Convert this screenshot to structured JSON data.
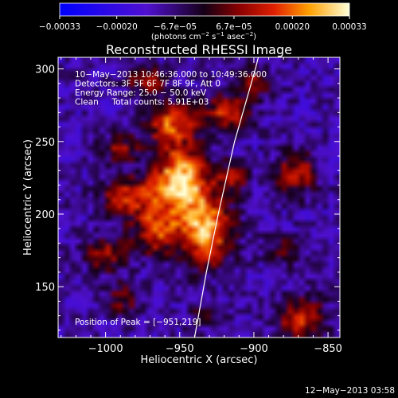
{
  "chart_data": {
    "type": "heatmap",
    "title": "Reconstructed RHESSI Image",
    "xlabel": "Heliocentric X (arcsec)",
    "ylabel": "Heliocentric Y (arcsec)",
    "xlim": [
      -1032,
      -842
    ],
    "ylim": [
      115,
      308
    ],
    "x_ticks": [
      -1000,
      -950,
      -900,
      -850
    ],
    "x_tick_labels": [
      "−1000",
      "−950",
      "−900",
      "−850"
    ],
    "y_ticks": [
      150,
      200,
      250,
      300
    ],
    "y_tick_labels": [
      "150",
      "200",
      "250",
      "300"
    ],
    "colorbar": {
      "min": -0.00033,
      "max": 0.00033,
      "ticks": [
        -0.00033,
        -0.0002,
        -6.7e-05,
        6.7e-05,
        0.0002,
        0.00033
      ],
      "tick_labels": [
        "−0.00033",
        "−0.00020",
        "−6.7e−05",
        "6.7e−05",
        "0.00020",
        "0.00033"
      ],
      "unit_text": "(photons cm",
      "unit_sup1": "−2",
      "unit_mid": " s",
      "unit_sup2": "−1",
      "unit_tail": " asec",
      "unit_sup3": "−2",
      "unit_close": ")"
    },
    "annotations": [
      "10−May−2013 10:46:36.000 to 10:49:36.000",
      "Detectors: 3F 5F 6F 7F 8F 9F, Att 0",
      "Energy Range: 25.0 − 50.0 keV",
      "Clean     Total counts: 5.91E+03"
    ],
    "peak_label": "Position of Peak = [−951,219]",
    "peak": [
      -951,
      219
    ],
    "emission_sources": [
      {
        "x": -950,
        "y": 222,
        "sx": 13,
        "sy": 16,
        "amp": 1.0
      },
      {
        "x": -932,
        "y": 188,
        "sx": 12,
        "sy": 16,
        "amp": 0.85
      },
      {
        "x": -966,
        "y": 188,
        "sx": 11,
        "sy": 11,
        "amp": 0.6
      },
      {
        "x": -985,
        "y": 212,
        "sx": 12,
        "sy": 9,
        "amp": 0.6
      },
      {
        "x": -1000,
        "y": 172,
        "sx": 10,
        "sy": 8,
        "amp": 0.45
      },
      {
        "x": -955,
        "y": 262,
        "sx": 12,
        "sy": 10,
        "amp": 0.65
      },
      {
        "x": -918,
        "y": 270,
        "sx": 11,
        "sy": 9,
        "amp": 0.55
      },
      {
        "x": -900,
        "y": 292,
        "sx": 9,
        "sy": 8,
        "amp": 0.35
      },
      {
        "x": -972,
        "y": 292,
        "sx": 10,
        "sy": 7,
        "amp": 0.45
      },
      {
        "x": -872,
        "y": 228,
        "sx": 10,
        "sy": 10,
        "amp": 0.55
      },
      {
        "x": -880,
        "y": 175,
        "sx": 8,
        "sy": 8,
        "amp": 0.3
      },
      {
        "x": -868,
        "y": 128,
        "sx": 11,
        "sy": 10,
        "amp": 0.6
      },
      {
        "x": -988,
        "y": 142,
        "sx": 9,
        "sy": 8,
        "amp": 0.35
      },
      {
        "x": -932,
        "y": 130,
        "sx": 9,
        "sy": 7,
        "amp": 0.25
      },
      {
        "x": -990,
        "y": 245,
        "sx": 9,
        "sy": 7,
        "amp": 0.4
      },
      {
        "x": -915,
        "y": 225,
        "sx": 8,
        "sy": 8,
        "amp": 0.4
      }
    ],
    "limb_curve": [
      [
        -940,
        115
      ],
      [
        -932,
        160
      ],
      [
        -924,
        200
      ],
      [
        -913,
        250
      ],
      [
        -899,
        300
      ],
      [
        -897,
        308
      ]
    ],
    "grid": false,
    "legend": "none"
  },
  "footer": {
    "date": "12−May−2013 03:58"
  }
}
